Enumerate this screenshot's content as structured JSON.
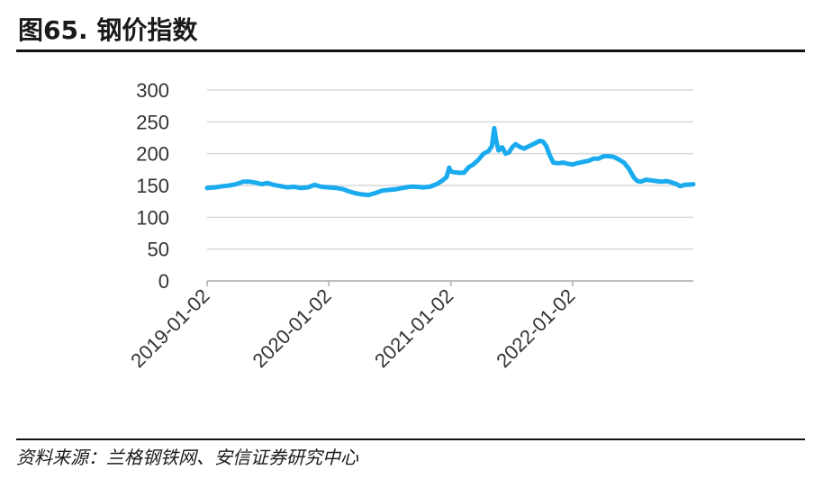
{
  "header": {
    "title": "图65. 钢价指数"
  },
  "footer": {
    "source": "资料来源：兰格钢铁网、安信证券研究中心"
  },
  "colors": {
    "line": "#1AABEF",
    "grid": "#D9D9D9",
    "axis": "#BFBFBF"
  },
  "chart_data": {
    "type": "line",
    "title": "",
    "xlabel": "",
    "ylabel": "",
    "ylim": [
      0,
      300
    ],
    "yticks": [
      0,
      50,
      100,
      150,
      200,
      250,
      300
    ],
    "xticks": [
      "2019-01-02",
      "2020-01-02",
      "2021-01-02",
      "2022-01-02"
    ],
    "xlim": [
      "2019-01-02",
      "2022-12-30"
    ],
    "grid": true,
    "legend": "none",
    "series": [
      {
        "name": "",
        "points": [
          [
            "2019-01-02",
            146
          ],
          [
            "2019-01-25",
            147
          ],
          [
            "2019-02-20",
            149
          ],
          [
            "2019-03-10",
            150
          ],
          [
            "2019-03-30",
            152
          ],
          [
            "2019-04-20",
            156
          ],
          [
            "2019-05-10",
            156
          ],
          [
            "2019-06-01",
            154
          ],
          [
            "2019-06-15",
            152
          ],
          [
            "2019-07-01",
            154
          ],
          [
            "2019-07-20",
            151
          ],
          [
            "2019-08-10",
            149
          ],
          [
            "2019-08-30",
            147
          ],
          [
            "2019-09-20",
            148
          ],
          [
            "2019-10-10",
            146
          ],
          [
            "2019-10-31",
            147
          ],
          [
            "2019-11-20",
            151
          ],
          [
            "2019-12-10",
            148
          ],
          [
            "2020-01-02",
            147
          ],
          [
            "2020-01-25",
            146
          ],
          [
            "2020-02-15",
            144
          ],
          [
            "2020-03-01",
            141
          ],
          [
            "2020-03-20",
            138
          ],
          [
            "2020-04-10",
            136
          ],
          [
            "2020-04-30",
            135
          ],
          [
            "2020-05-20",
            138
          ],
          [
            "2020-06-10",
            142
          ],
          [
            "2020-07-01",
            143
          ],
          [
            "2020-07-20",
            144
          ],
          [
            "2020-08-10",
            146
          ],
          [
            "2020-09-01",
            148
          ],
          [
            "2020-09-20",
            148
          ],
          [
            "2020-10-10",
            147
          ],
          [
            "2020-10-31",
            148
          ],
          [
            "2020-11-20",
            152
          ],
          [
            "2020-12-05",
            157
          ],
          [
            "2020-12-20",
            163
          ],
          [
            "2020-12-28",
            178
          ],
          [
            "2021-01-02",
            172
          ],
          [
            "2021-01-10",
            171
          ],
          [
            "2021-01-25",
            170
          ],
          [
            "2021-02-10",
            170
          ],
          [
            "2021-02-25",
            179
          ],
          [
            "2021-03-10",
            183
          ],
          [
            "2021-03-25",
            190
          ],
          [
            "2021-04-10",
            200
          ],
          [
            "2021-04-25",
            204
          ],
          [
            "2021-05-05",
            212
          ],
          [
            "2021-05-12",
            240
          ],
          [
            "2021-05-18",
            220
          ],
          [
            "2021-05-25",
            205
          ],
          [
            "2021-06-05",
            210
          ],
          [
            "2021-06-15",
            200
          ],
          [
            "2021-06-25",
            202
          ],
          [
            "2021-07-05",
            210
          ],
          [
            "2021-07-15",
            215
          ],
          [
            "2021-07-30",
            210
          ],
          [
            "2021-08-10",
            208
          ],
          [
            "2021-08-25",
            212
          ],
          [
            "2021-09-10",
            216
          ],
          [
            "2021-09-25",
            220
          ],
          [
            "2021-10-05",
            219
          ],
          [
            "2021-10-15",
            212
          ],
          [
            "2021-10-25",
            198
          ],
          [
            "2021-11-05",
            186
          ],
          [
            "2021-11-20",
            185
          ],
          [
            "2021-12-05",
            186
          ],
          [
            "2021-12-20",
            184
          ],
          [
            "2022-01-02",
            183
          ],
          [
            "2022-01-15",
            185
          ],
          [
            "2022-02-01",
            187
          ],
          [
            "2022-02-20",
            189
          ],
          [
            "2022-03-05",
            192
          ],
          [
            "2022-03-20",
            192
          ],
          [
            "2022-04-05",
            196
          ],
          [
            "2022-04-20",
            196
          ],
          [
            "2022-05-05",
            195
          ],
          [
            "2022-05-20",
            191
          ],
          [
            "2022-06-05",
            186
          ],
          [
            "2022-06-20",
            176
          ],
          [
            "2022-07-05",
            162
          ],
          [
            "2022-07-15",
            157
          ],
          [
            "2022-07-25",
            156
          ],
          [
            "2022-08-10",
            159
          ],
          [
            "2022-08-25",
            158
          ],
          [
            "2022-09-10",
            157
          ],
          [
            "2022-09-25",
            156
          ],
          [
            "2022-10-10",
            157
          ],
          [
            "2022-10-25",
            155
          ],
          [
            "2022-11-10",
            152
          ],
          [
            "2022-11-20",
            149
          ],
          [
            "2022-12-05",
            151
          ],
          [
            "2022-12-30",
            152
          ]
        ]
      }
    ]
  }
}
